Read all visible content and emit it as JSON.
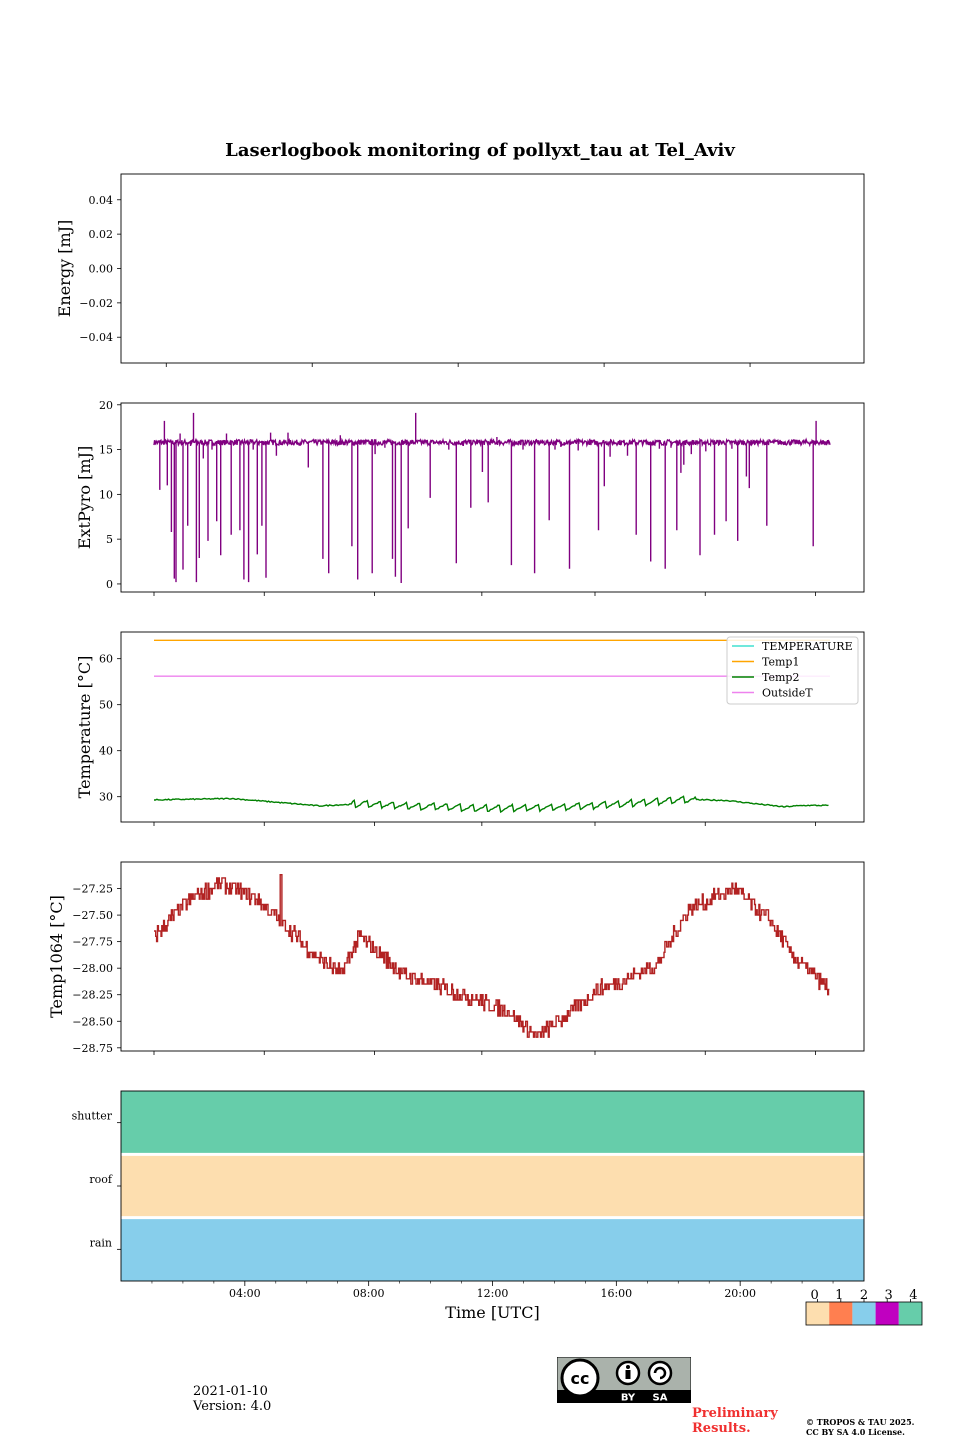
{
  "title": "Laserlogbook monitoring of pollyxt_tau at Tel_Aviv",
  "footer": {
    "date": "2021-01-10",
    "version": "Version: 4.0",
    "preliminary": [
      "Preliminary",
      "Results."
    ],
    "copyright": [
      "© TROPOS & TAU 2025.",
      "CC BY SA 4.0 License."
    ],
    "license_badge": [
      "BY",
      "SA"
    ]
  },
  "colors": {
    "extpyro": "#800080",
    "temperature": "#40e0d0",
    "temp1": "#ffa500",
    "temp2": "#008000",
    "outsideT": "#ee82ee",
    "temp1064": "#b22222",
    "flag_0": "#fddeaf",
    "flag_1": "#ff7f50",
    "flag_2": "#87ceeb",
    "flag_3": "#c000c0",
    "flag_4": "#66cdaa"
  },
  "chart_data": [
    {
      "type": "line",
      "ylabel": "Energy [mJ]",
      "ylim": [
        -0.055,
        0.055
      ],
      "yticks": [
        0.04,
        0.02,
        0.0,
        -0.02,
        -0.04
      ],
      "ytick_labels": [
        "0.04",
        "0.02",
        "0.00",
        "−0.02",
        "−0.04"
      ],
      "series": []
    },
    {
      "type": "line",
      "ylabel": "ExtPyro [mJ]",
      "ylim": [
        -0.9,
        20.2
      ],
      "yticks": [
        0,
        5,
        10,
        15,
        20
      ],
      "ytick_labels": [
        "0",
        "5",
        "10",
        "15",
        "20"
      ],
      "baseline": 15.8,
      "x_range_hours": [
        0.8,
        23.2
      ],
      "dips": [
        [
          1.0,
          10.5
        ],
        [
          1.15,
          18.2
        ],
        [
          1.25,
          11.0
        ],
        [
          1.4,
          5.8
        ],
        [
          1.5,
          0.6
        ],
        [
          1.55,
          0.2
        ],
        [
          1.7,
          16.8
        ],
        [
          1.8,
          1.6
        ],
        [
          1.95,
          6.5
        ],
        [
          2.05,
          15.4
        ],
        [
          2.15,
          19.1
        ],
        [
          2.25,
          0.2
        ],
        [
          2.35,
          2.9
        ],
        [
          2.5,
          14.0
        ],
        [
          2.65,
          4.8
        ],
        [
          2.8,
          15.0
        ],
        [
          2.95,
          7.0
        ],
        [
          3.1,
          3.2
        ],
        [
          3.3,
          16.8
        ],
        [
          3.45,
          5.5
        ],
        [
          3.6,
          15.9
        ],
        [
          3.75,
          6.0
        ],
        [
          3.9,
          0.5
        ],
        [
          4.05,
          0.2
        ],
        [
          4.2,
          15.0
        ],
        [
          4.35,
          3.3
        ],
        [
          4.5,
          6.5
        ],
        [
          4.65,
          0.7
        ],
        [
          4.8,
          16.9
        ],
        [
          5.0,
          14.3
        ],
        [
          5.2,
          15.5
        ],
        [
          5.4,
          16.9
        ],
        [
          5.7,
          15.6
        ],
        [
          6.1,
          13.0
        ],
        [
          6.6,
          2.8
        ],
        [
          6.8,
          1.2
        ],
        [
          6.95,
          15.7
        ],
        [
          7.2,
          16.6
        ],
        [
          7.6,
          4.2
        ],
        [
          7.8,
          0.5
        ],
        [
          8.3,
          1.2
        ],
        [
          8.4,
          14.5
        ],
        [
          8.75,
          15.2
        ],
        [
          9.0,
          2.8
        ],
        [
          9.1,
          0.8
        ],
        [
          9.3,
          0.1
        ],
        [
          9.55,
          6.2
        ],
        [
          9.8,
          19.1
        ],
        [
          10.3,
          9.6
        ],
        [
          10.95,
          15.0
        ],
        [
          11.2,
          2.3
        ],
        [
          11.45,
          15.4
        ],
        [
          11.7,
          8.5
        ],
        [
          12.1,
          12.5
        ],
        [
          12.3,
          9.1
        ],
        [
          12.6,
          16.4
        ],
        [
          13.1,
          2.1
        ],
        [
          13.5,
          15.0
        ],
        [
          13.9,
          1.2
        ],
        [
          14.4,
          7.1
        ],
        [
          14.6,
          15.0
        ],
        [
          14.8,
          15.3
        ],
        [
          15.1,
          1.7
        ],
        [
          15.4,
          14.9
        ],
        [
          15.8,
          16.2
        ],
        [
          16.1,
          6.0
        ],
        [
          16.3,
          10.9
        ],
        [
          16.4,
          15.5
        ],
        [
          16.5,
          14.2
        ],
        [
          17.1,
          14.3
        ],
        [
          17.4,
          5.5
        ],
        [
          17.9,
          2.5
        ],
        [
          18.05,
          15.6
        ],
        [
          18.2,
          15.1
        ],
        [
          18.4,
          1.7
        ],
        [
          18.6,
          15.2
        ],
        [
          18.8,
          6.0
        ],
        [
          18.95,
          12.4
        ],
        [
          19.05,
          13.3
        ],
        [
          19.3,
          14.5
        ],
        [
          19.6,
          3.2
        ],
        [
          19.8,
          14.8
        ],
        [
          20.1,
          5.5
        ],
        [
          20.5,
          7.0
        ],
        [
          20.7,
          15.1
        ],
        [
          20.9,
          4.8
        ],
        [
          21.2,
          12.0
        ],
        [
          21.3,
          10.7
        ],
        [
          21.3,
          15.2
        ],
        [
          21.9,
          6.5
        ],
        [
          22.1,
          15.8
        ],
        [
          23.5,
          4.2
        ],
        [
          23.6,
          18.2
        ],
        [
          23.9,
          15.5
        ],
        [
          24.1,
          16.8
        ]
      ]
    },
    {
      "type": "line",
      "ylabel": "Temperature [°C]",
      "ylim": [
        24.5,
        65.8
      ],
      "yticks": [
        30,
        40,
        50,
        60
      ],
      "ytick_labels": [
        "30",
        "40",
        "50",
        "60"
      ],
      "legend_position": "top-right",
      "series": [
        {
          "name": "TEMPERATURE",
          "values": []
        },
        {
          "name": "Temp1",
          "const": 64.0
        },
        {
          "name": "Temp2",
          "x": [
            0.8,
            3.5,
            6.5,
            8.0,
            12.0,
            16.0,
            19.0,
            20.5,
            22.5,
            23.2
          ],
          "y": [
            29.3,
            29.6,
            28.0,
            28.5,
            27.4,
            28.0,
            29.4,
            29.2,
            27.8,
            28.1
          ]
        },
        {
          "name": "OutsideT",
          "const": 56.2
        }
      ]
    },
    {
      "type": "line",
      "ylabel": "Temp1064 [°C]",
      "ylim": [
        -28.78,
        -27.0
      ],
      "yticks": [
        -27.25,
        -27.5,
        -27.75,
        -28.0,
        -28.25,
        -28.5,
        -28.75
      ],
      "ytick_labels": [
        "−27.25",
        "−27.50",
        "−27.75",
        "−28.00",
        "−28.25",
        "−28.50",
        "−28.75"
      ],
      "x": [
        0.8,
        1.3,
        2.0,
        3.0,
        4.2,
        5.5,
        6.2,
        7.0,
        7.6,
        8.0,
        9.0,
        10.0,
        11.0,
        12.5,
        13.5,
        14.2,
        15.5,
        16.5,
        17.5,
        18.5,
        20.0,
        21.2,
        22.0,
        23.2
      ],
      "y": [
        -27.7,
        -27.55,
        -27.35,
        -27.2,
        -27.35,
        -27.7,
        -27.9,
        -28.05,
        -27.7,
        -27.8,
        -28.05,
        -28.15,
        -28.25,
        -28.4,
        -28.65,
        -28.5,
        -28.2,
        -28.1,
        -27.95,
        -27.45,
        -27.25,
        -27.55,
        -27.9,
        -28.2
      ]
    },
    {
      "type": "heatmap",
      "rows": [
        "shutter",
        "roof",
        "rain"
      ],
      "row_values": [
        4,
        0,
        2
      ],
      "xlabel": "Time [UTC]",
      "xlim": [
        0,
        24
      ],
      "xtick_labels": [
        "04:00",
        "08:00",
        "12:00",
        "16:00",
        "20:00"
      ],
      "xtick_values": [
        4,
        8,
        12,
        16,
        20
      ],
      "colorbar": {
        "ticks": [
          "0",
          "1",
          "2",
          "3",
          "4"
        ]
      }
    }
  ]
}
